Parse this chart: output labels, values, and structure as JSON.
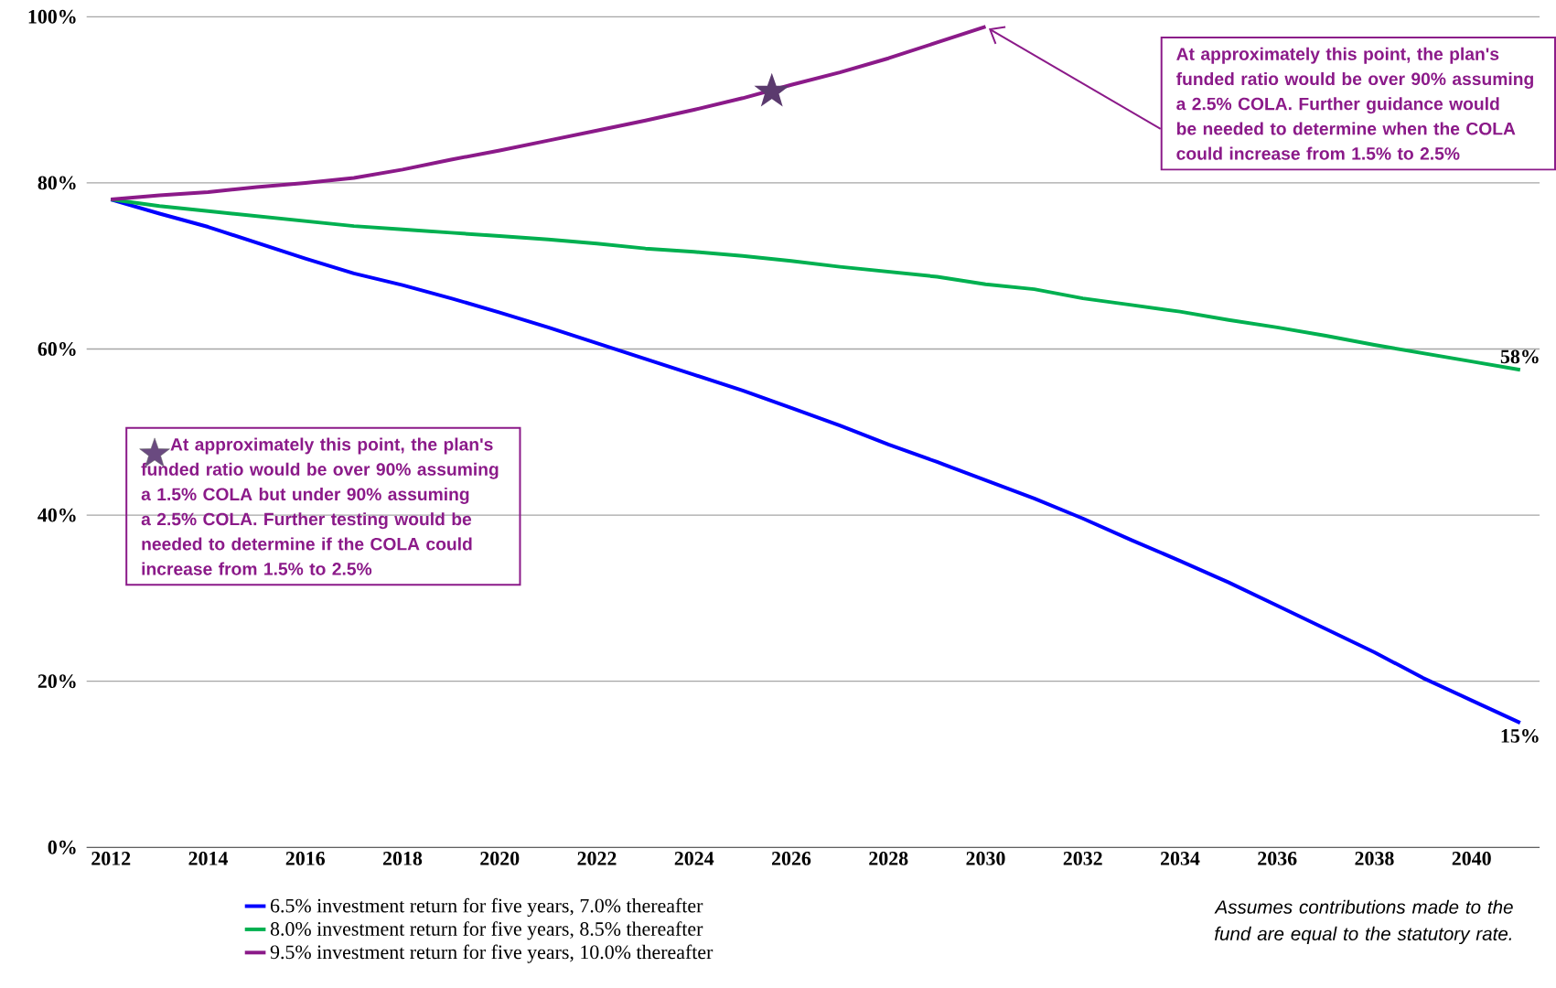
{
  "chart_data": {
    "type": "line",
    "x": [
      2012,
      2013,
      2014,
      2015,
      2016,
      2017,
      2018,
      2019,
      2020,
      2021,
      2022,
      2023,
      2024,
      2025,
      2026,
      2027,
      2028,
      2029,
      2030,
      2031,
      2032,
      2033,
      2034,
      2035,
      2036,
      2037,
      2038,
      2039,
      2040,
      2041
    ],
    "series": [
      {
        "name": "6.5% investment return for five years, 7.0% thereafter",
        "color": "#0000ff",
        "values": [
          78,
          76.3,
          74.7,
          72.8,
          70.9,
          69.1,
          67.7,
          66.1,
          64.4,
          62.6,
          60.7,
          58.8,
          56.9,
          55,
          52.9,
          50.8,
          48.5,
          46.4,
          44.2,
          42,
          39.6,
          37,
          34.5,
          31.9,
          29.1,
          26.3,
          23.5,
          20.4,
          17.7,
          15
        ],
        "value_labels": [
          null,
          null,
          null,
          null,
          null,
          null,
          null,
          null,
          null,
          null,
          null,
          null,
          null,
          null,
          null,
          null,
          null,
          null,
          null,
          null,
          null,
          null,
          null,
          null,
          null,
          null,
          null,
          null,
          null,
          "15%"
        ]
      },
      {
        "name": "8.0% investment return for five years, 8.5% thereafter",
        "color": "#00b050",
        "values": [
          78,
          77.2,
          76.6,
          76,
          75.4,
          74.8,
          74.4,
          74,
          73.6,
          73.2,
          72.7,
          72.1,
          71.7,
          71.2,
          70.6,
          69.9,
          69.3,
          68.7,
          67.8,
          67.2,
          66.1,
          65.3,
          64.5,
          63.5,
          62.6,
          61.6,
          60.5,
          59.5,
          58.5,
          57.5
        ],
        "value_labels": [
          null,
          null,
          null,
          null,
          null,
          null,
          null,
          null,
          null,
          null,
          null,
          null,
          null,
          null,
          null,
          null,
          null,
          null,
          null,
          null,
          null,
          null,
          null,
          null,
          null,
          null,
          null,
          null,
          null,
          "58%"
        ]
      },
      {
        "name": "9.5% investment return for five years, 10.0% thereafter",
        "color": "#8b1a89",
        "values": [
          78,
          78.5,
          78.9,
          79.5,
          80,
          80.6,
          81.6,
          82.8,
          83.9,
          85.1,
          86.3,
          87.5,
          88.8,
          90.2,
          91.8,
          93.3,
          95,
          96.9,
          98.8,
          null,
          null,
          null,
          null,
          null,
          null,
          null,
          null,
          null,
          null,
          null
        ]
      },
      {
        "type": "scatter",
        "x": [
          2025.6
        ],
        "values": [
          91
        ],
        "color": "#5b3a6e",
        "marker": "star"
      }
    ],
    "xlim": [
      2011.5,
      2041.4
    ],
    "ylim": [
      0,
      100
    ],
    "xticks": [
      2012,
      2014,
      2016,
      2018,
      2020,
      2022,
      2024,
      2026,
      2028,
      2030,
      2032,
      2034,
      2036,
      2038,
      2040
    ],
    "yticks": [
      {
        "value": 0,
        "label": "0%"
      },
      {
        "value": 20,
        "label": "20%"
      },
      {
        "value": 40,
        "label": "40%"
      },
      {
        "value": 60,
        "label": "60%"
      },
      {
        "value": 80,
        "label": "80%"
      },
      {
        "value": 100,
        "label": "100%"
      }
    ],
    "grid": "y",
    "legend": "bottom left",
    "marker": "none",
    "line_style": "solid",
    "annotations": [
      "At approximately this point, the plan's funded ratio would be over 90% assuming a 1.5% COLA but under 90% assuming a 2.5% COLA. Further testing would be needed to determine if the COLA could increase from 1.5% to 2.5%",
      {
        "text": "At approximately this point, the plan's funded ratio would be over 90% assuming a 2.5% COLA. Further guidance would be needed to determine when the COLA could increase from 1.5% to 2.5%",
        "x": 2030,
        "y": 98.8
      },
      "Assumes contributions made to the fund are equal to the statutory rate."
    ]
  }
}
